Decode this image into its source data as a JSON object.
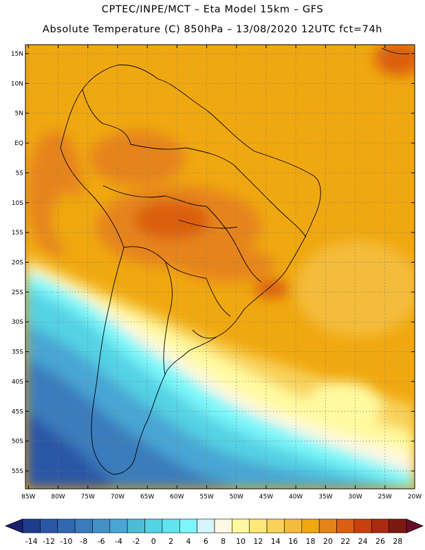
{
  "title": {
    "line1": "CPTEC/INPE/MCT –  Eta Model 15km – GFS",
    "line2": "Absolute Temperature (C) 850hPa – 13/08/2020 12UTC fct=74h"
  },
  "map": {
    "lat_labels": [
      "15N",
      "10N",
      "5N",
      "EQ",
      "5S",
      "10S",
      "15S",
      "20S",
      "25S",
      "30S",
      "35S",
      "40S",
      "45S",
      "50S",
      "55S"
    ],
    "lat_values": [
      15,
      10,
      5,
      0,
      -5,
      -10,
      -15,
      -20,
      -25,
      -30,
      -35,
      -40,
      -45,
      -50,
      -55
    ],
    "lon_labels": [
      "85W",
      "80W",
      "75W",
      "70W",
      "65W",
      "60W",
      "55W",
      "50W",
      "45W",
      "40W",
      "35W",
      "30W",
      "25W",
      "20W"
    ],
    "lon_values": [
      -85,
      -80,
      -75,
      -70,
      -65,
      -60,
      -55,
      -50,
      -45,
      -40,
      -35,
      -30,
      -25,
      -20
    ],
    "extent": {
      "lon_min": -85.5,
      "lon_max": -20,
      "lat_min": -58,
      "lat_max": 16.5
    }
  },
  "colorbar": {
    "labels": [
      "-14",
      "-12",
      "-10",
      "-8",
      "-6",
      "-4",
      "-2",
      "0",
      "2",
      "4",
      "6",
      "8",
      "10",
      "12",
      "14",
      "16",
      "18",
      "20",
      "22",
      "24",
      "26",
      "28"
    ],
    "colors": [
      "#1e3c8c",
      "#2a56a6",
      "#3268b0",
      "#3a7cbc",
      "#4491c8",
      "#4aa6d4",
      "#4fbcd6",
      "#55d2e4",
      "#62e4ee",
      "#7cf6fa",
      "#d4f6fa",
      "#fff8e2",
      "#fffaa0",
      "#fde878",
      "#f8d25a",
      "#f4bc3a",
      "#f0a810",
      "#e6841c",
      "#dc5e10",
      "#c84010",
      "#a82a10",
      "#7a1a12"
    ],
    "low_color": "#1a1f6e",
    "high_color": "#6a0c28"
  }
}
